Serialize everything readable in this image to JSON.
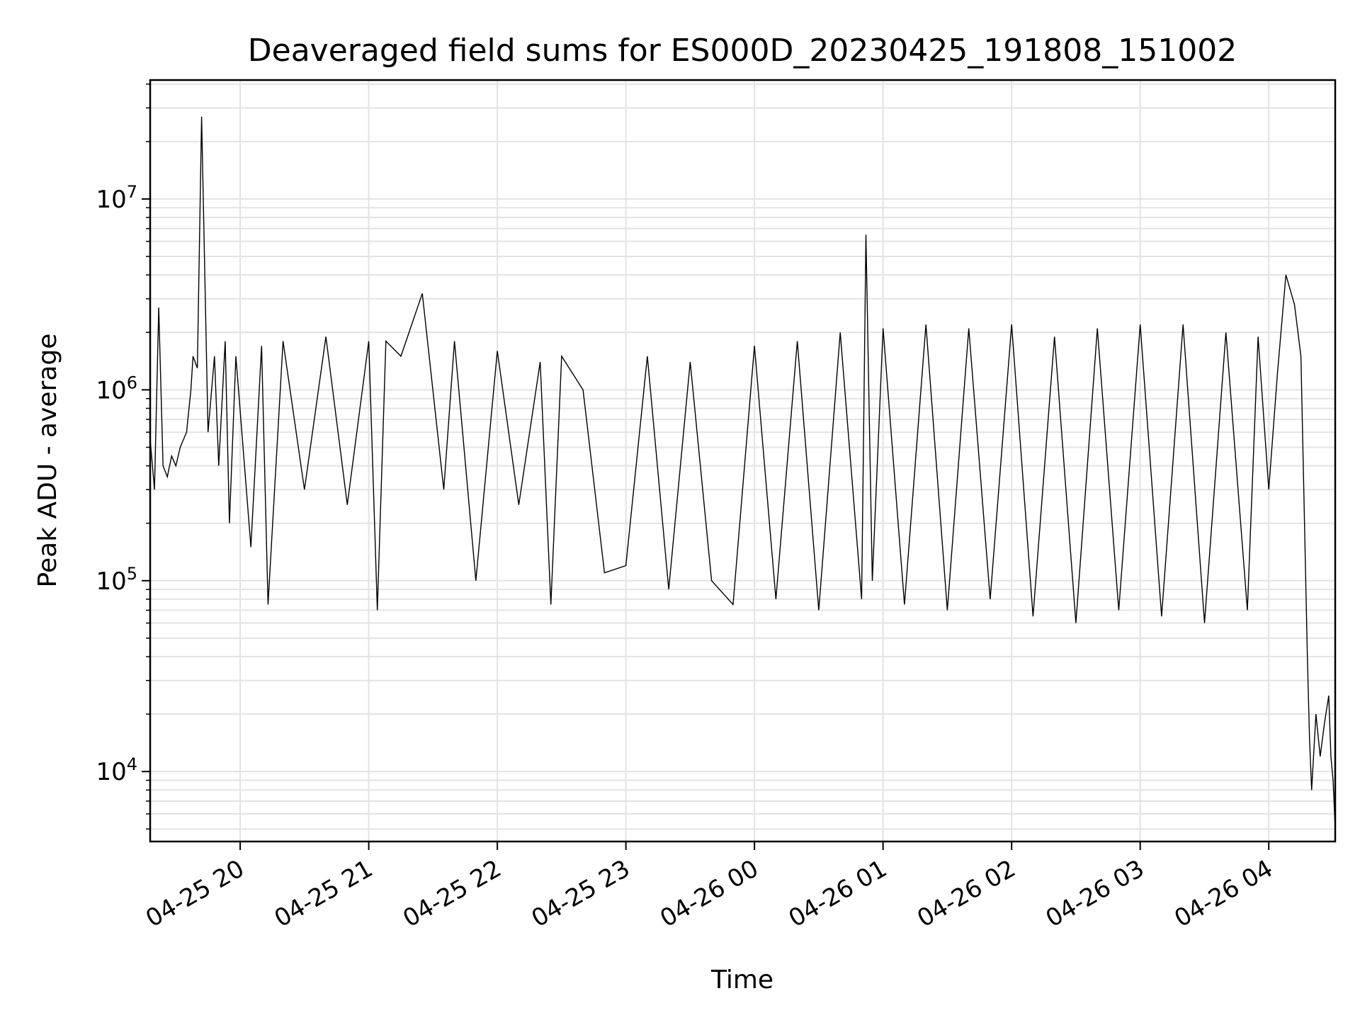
{
  "chart_data": {
    "type": "line",
    "title": "Deaveraged field sums for ES000D_20230425_191808_151002",
    "xlabel": "Time",
    "ylabel": "Peak ADU - average",
    "x_scale": "time",
    "y_scale": "log",
    "xlim": [
      "2023-04-25 19:18",
      "2023-04-26 04:31"
    ],
    "ylim": [
      4300,
      42000000
    ],
    "grid": true,
    "x_ticks": [
      {
        "t": "2023-04-25 20:00",
        "label": "04-25 20"
      },
      {
        "t": "2023-04-25 21:00",
        "label": "04-25 21"
      },
      {
        "t": "2023-04-25 22:00",
        "label": "04-25 22"
      },
      {
        "t": "2023-04-25 23:00",
        "label": "04-25 23"
      },
      {
        "t": "2023-04-26 00:00",
        "label": "04-26 00"
      },
      {
        "t": "2023-04-26 01:00",
        "label": "04-26 01"
      },
      {
        "t": "2023-04-26 02:00",
        "label": "04-26 02"
      },
      {
        "t": "2023-04-26 03:00",
        "label": "04-26 03"
      },
      {
        "t": "2023-04-26 04:00",
        "label": "04-26 04"
      }
    ],
    "y_ticks": [
      {
        "value": 10000,
        "base": "10",
        "exp": "4"
      },
      {
        "value": 100000,
        "base": "10",
        "exp": "5"
      },
      {
        "value": 1000000,
        "base": "10",
        "exp": "6"
      },
      {
        "value": 10000000,
        "base": "10",
        "exp": "7"
      }
    ],
    "series": [
      {
        "color": "#000000",
        "x": [
          "2023-04-25 19:18",
          "2023-04-25 19:20",
          "2023-04-25 19:22",
          "2023-04-25 19:24",
          "2023-04-25 19:26",
          "2023-04-25 19:28",
          "2023-04-25 19:30",
          "2023-04-25 19:32",
          "2023-04-25 19:35",
          "2023-04-25 19:37",
          "2023-04-25 19:38",
          "2023-04-25 19:40",
          "2023-04-25 19:42",
          "2023-04-25 19:45",
          "2023-04-25 19:48",
          "2023-04-25 19:50",
          "2023-04-25 19:53",
          "2023-04-25 19:55",
          "2023-04-25 19:58",
          "2023-04-25 20:05",
          "2023-04-25 20:10",
          "2023-04-25 20:13",
          "2023-04-25 20:20",
          "2023-04-25 20:30",
          "2023-04-25 20:40",
          "2023-04-25 20:50",
          "2023-04-25 21:00",
          "2023-04-25 21:04",
          "2023-04-25 21:08",
          "2023-04-25 21:15",
          "2023-04-25 21:25",
          "2023-04-25 21:35",
          "2023-04-25 21:40",
          "2023-04-25 21:50",
          "2023-04-25 22:00",
          "2023-04-25 22:10",
          "2023-04-25 22:20",
          "2023-04-25 22:25",
          "2023-04-25 22:30",
          "2023-04-25 22:40",
          "2023-04-25 22:50",
          "2023-04-25 23:00",
          "2023-04-25 23:10",
          "2023-04-25 23:20",
          "2023-04-25 23:30",
          "2023-04-25 23:40",
          "2023-04-25 23:50",
          "2023-04-26 00:00",
          "2023-04-26 00:10",
          "2023-04-26 00:20",
          "2023-04-26 00:30",
          "2023-04-26 00:40",
          "2023-04-26 00:50",
          "2023-04-26 00:52",
          "2023-04-26 00:55",
          "2023-04-26 01:00",
          "2023-04-26 01:10",
          "2023-04-26 01:20",
          "2023-04-26 01:30",
          "2023-04-26 01:40",
          "2023-04-26 01:50",
          "2023-04-26 02:00",
          "2023-04-26 02:10",
          "2023-04-26 02:20",
          "2023-04-26 02:30",
          "2023-04-26 02:40",
          "2023-04-26 02:50",
          "2023-04-26 03:00",
          "2023-04-26 03:10",
          "2023-04-26 03:20",
          "2023-04-26 03:30",
          "2023-04-26 03:40",
          "2023-04-26 03:50",
          "2023-04-26 03:55",
          "2023-04-26 04:00",
          "2023-04-26 04:04",
          "2023-04-26 04:08",
          "2023-04-26 04:12",
          "2023-04-26 04:15",
          "2023-04-26 04:18",
          "2023-04-26 04:19",
          "2023-04-26 04:20",
          "2023-04-26 04:22",
          "2023-04-26 04:24",
          "2023-04-26 04:26",
          "2023-04-26 04:28",
          "2023-04-26 04:29",
          "2023-04-26 04:30",
          "2023-04-26 04:31"
        ],
        "y": [
          550000,
          300000,
          2700000,
          400000,
          350000,
          450000,
          400000,
          500000,
          600000,
          1000000,
          1500000,
          1300000,
          27000000,
          600000,
          1500000,
          400000,
          1800000,
          200000,
          1500000,
          150000,
          1700000,
          75000,
          1800000,
          300000,
          1900000,
          250000,
          1800000,
          70000,
          1800000,
          1500000,
          3200000,
          300000,
          1800000,
          100000,
          1600000,
          250000,
          1400000,
          75000,
          1500000,
          1000000,
          110000,
          120000,
          1500000,
          90000,
          1400000,
          100000,
          75000,
          1700000,
          80000,
          1800000,
          70000,
          2000000,
          80000,
          6500000,
          100000,
          2100000,
          75000,
          2200000,
          70000,
          2100000,
          80000,
          2200000,
          65000,
          1900000,
          60000,
          2100000,
          70000,
          2200000,
          65000,
          2200000,
          60000,
          2000000,
          70000,
          1900000,
          300000,
          1200000,
          4000000,
          2800000,
          1500000,
          40000,
          15000,
          8000,
          20000,
          12000,
          18000,
          25000,
          12000,
          9000,
          5000
        ]
      }
    ]
  }
}
